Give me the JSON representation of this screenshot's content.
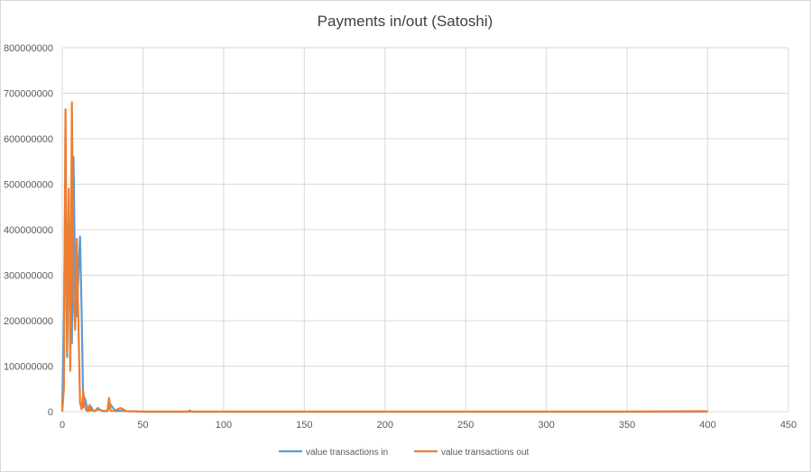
{
  "chart_data": {
    "type": "line",
    "title": "Payments in/out (Satoshi)",
    "xlabel": "",
    "ylabel": "",
    "xlim": [
      0,
      450
    ],
    "ylim": [
      0,
      800000000
    ],
    "x_ticks": [
      0,
      50,
      100,
      150,
      200,
      250,
      300,
      350,
      400,
      450
    ],
    "y_ticks": [
      0,
      100000000,
      200000000,
      300000000,
      400000000,
      500000000,
      600000000,
      700000000,
      800000000
    ],
    "x_tick_labels": [
      "0",
      "50",
      "100",
      "150",
      "200",
      "250",
      "300",
      "350",
      "400",
      "450"
    ],
    "y_tick_labels": [
      "0",
      "100000000",
      "200000000",
      "300000000",
      "400000000",
      "500000000",
      "600000000",
      "700000000",
      "800000000"
    ],
    "grid": true,
    "legend_position": "bottom",
    "series": [
      {
        "name": "value transactions in",
        "color": "#5b9bd5",
        "x": [
          0,
          1,
          2,
          3,
          4,
          5,
          6,
          7,
          8,
          9,
          10,
          11,
          12,
          13,
          14,
          15,
          16,
          17,
          18,
          19,
          20,
          22,
          25,
          28,
          30,
          33,
          36,
          40,
          45,
          50,
          80,
          100,
          150,
          200,
          250,
          300,
          350,
          400
        ],
        "y": [
          10000000,
          200000000,
          540000000,
          120000000,
          460000000,
          180000000,
          150000000,
          560000000,
          270000000,
          210000000,
          300000000,
          385000000,
          220000000,
          10000000,
          30000000,
          15000000,
          5000000,
          3000000,
          10000000,
          2000000,
          1000000,
          8000000,
          1000000,
          2000000,
          15000000,
          1000000,
          2000000,
          1000000,
          500000,
          0,
          0,
          0,
          0,
          0,
          0,
          0,
          0,
          0
        ]
      },
      {
        "name": "value transactions out",
        "color": "#ed7d31",
        "x": [
          0,
          1,
          2,
          3,
          4,
          5,
          6,
          7,
          8,
          9,
          10,
          11,
          12,
          13,
          14,
          15,
          16,
          17,
          18,
          19,
          20,
          22,
          25,
          28,
          29,
          30,
          31,
          33,
          36,
          40,
          45,
          50,
          78,
          79,
          80,
          100,
          150,
          200,
          250,
          300,
          350,
          398,
          400
        ],
        "y": [
          0,
          50000000,
          665000000,
          130000000,
          490000000,
          90000000,
          680000000,
          250000000,
          180000000,
          380000000,
          200000000,
          20000000,
          5000000,
          45000000,
          10000000,
          3000000,
          1000000,
          15000000,
          2000000,
          3000000,
          1000000,
          5000000,
          2000000,
          1000000,
          30000000,
          2000000,
          1000000,
          3000000,
          8000000,
          1000000,
          500000,
          0,
          0,
          3000000,
          0,
          0,
          0,
          0,
          0,
          0,
          0,
          1000000,
          0
        ]
      }
    ]
  }
}
